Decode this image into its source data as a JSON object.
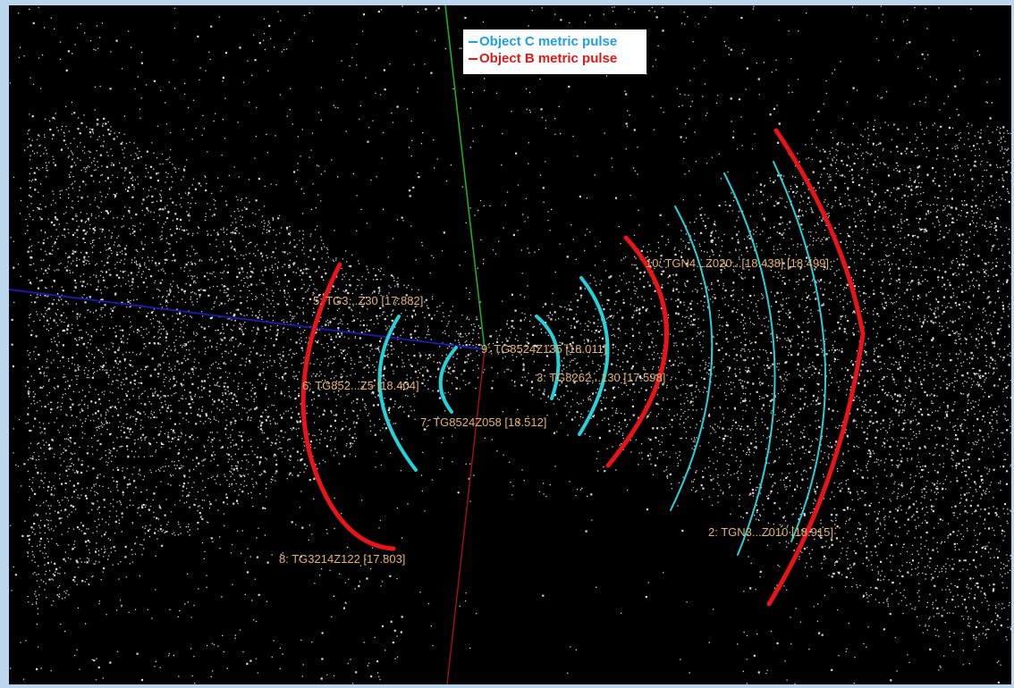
{
  "legend": {
    "items": [
      {
        "label": "Object C metric pulse",
        "color": "#1ea0e6",
        "line": "solid"
      },
      {
        "label": "Object B metric pulse",
        "color": "#e01818",
        "line": "dashed"
      }
    ]
  },
  "colors": {
    "background": "#000000",
    "frame": "#bcd6ee",
    "points": "#ffffff",
    "object_c": "#22d3dc",
    "object_b": "#e8141a",
    "label": "#e8b46a",
    "axis_x": "#1a1aa8",
    "axis_y": "#1cb81c",
    "axis_z": "#a01010"
  },
  "labels": {
    "left_top": "5: TG3...Z30 [17.882]",
    "left_mid": "6: TG852...Z5 [18.404]",
    "left_inner": "7: TG8524Z058 [18.512]",
    "left_bottom": "8: TG3214Z122 [17.803]",
    "center": "9: TG8524Z135 [18.011]",
    "right_inner": "3: TG8262...130 [17.598]",
    "right_top": "10: TGN4...Z020...[18.438] [18.499]",
    "right_bottom": "2: TGN3...Z010 [18.915]"
  }
}
